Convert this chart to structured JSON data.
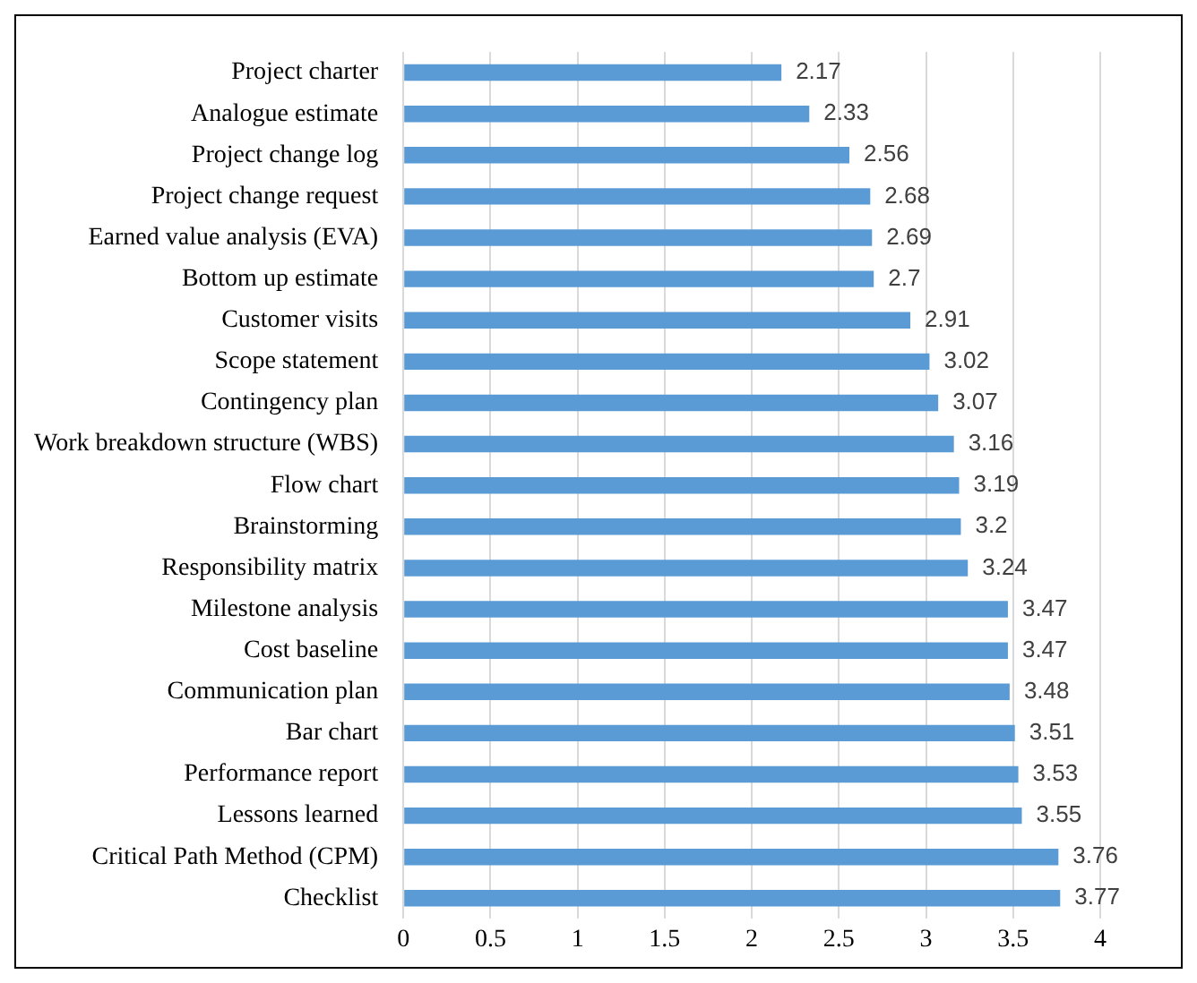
{
  "chart_data": {
    "type": "bar",
    "orientation": "horizontal",
    "categories": [
      "Project charter",
      "Analogue estimate",
      "Project change log",
      "Project change request",
      "Earned value analysis (EVA)",
      "Bottom up estimate",
      "Customer visits",
      "Scope statement",
      "Contingency plan",
      "Work breakdown structure (WBS)",
      "Flow chart",
      "Brainstorming",
      "Responsibility matrix",
      "Milestone analysis",
      "Cost baseline",
      "Communication plan",
      "Bar chart",
      "Performance report",
      "Lessons learned",
      "Critical Path Method (CPM)",
      "Checklist"
    ],
    "values": [
      2.17,
      2.33,
      2.56,
      2.68,
      2.69,
      2.7,
      2.91,
      3.02,
      3.07,
      3.16,
      3.19,
      3.2,
      3.24,
      3.47,
      3.47,
      3.48,
      3.51,
      3.53,
      3.55,
      3.76,
      3.77
    ],
    "color": "#5b9bd5",
    "xlim": [
      0,
      4
    ],
    "xticks": [
      0,
      0.5,
      1,
      1.5,
      2,
      2.5,
      3,
      3.5,
      4
    ],
    "grid": "x",
    "data_labels": true
  }
}
